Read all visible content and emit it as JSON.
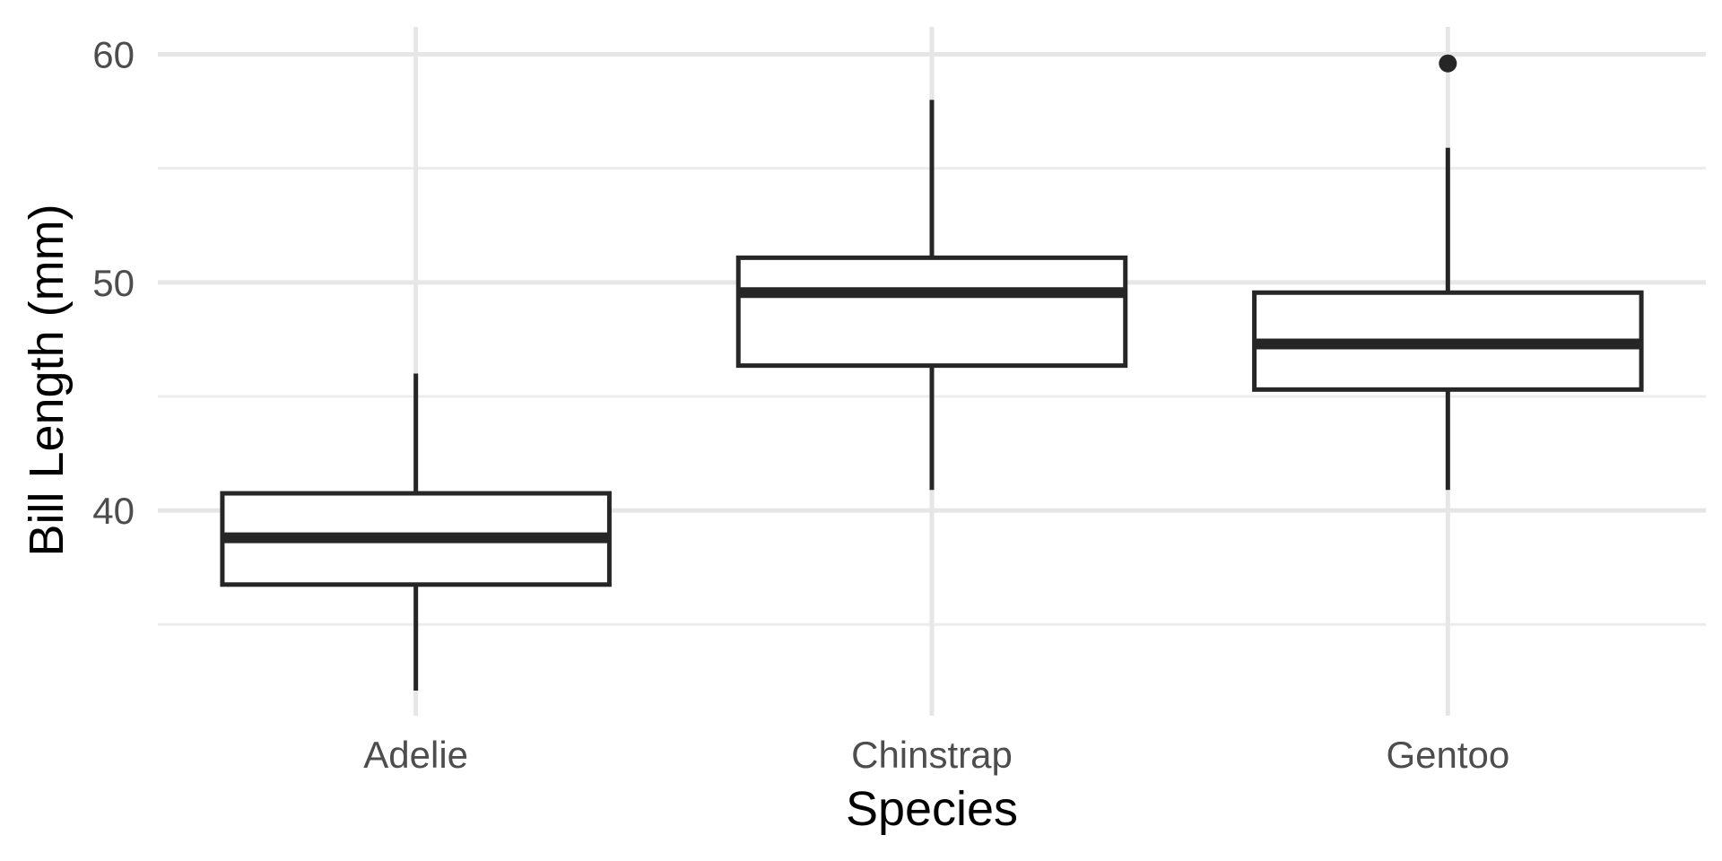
{
  "chart_data": {
    "type": "boxplot",
    "xlabel": "Species",
    "ylabel": "Bill Length (mm)",
    "ylim": [
      31,
      61.2
    ],
    "y_ticks": [
      40,
      50,
      60
    ],
    "y_minor_ticks": [
      35,
      45,
      55
    ],
    "grid": true,
    "legend": "none",
    "categories": [
      "Adelie",
      "Chinstrap",
      "Gentoo"
    ],
    "boxes": [
      {
        "category": "Adelie",
        "whisker_low": 32.1,
        "q1": 36.75,
        "median": 38.8,
        "q3": 40.75,
        "whisker_high": 46.0,
        "outliers": []
      },
      {
        "category": "Chinstrap",
        "whisker_low": 40.9,
        "q1": 46.35,
        "median": 49.55,
        "q3": 51.08,
        "whisker_high": 58.0,
        "outliers": []
      },
      {
        "category": "Gentoo",
        "whisker_low": 40.9,
        "q1": 45.3,
        "median": 47.3,
        "q3": 49.55,
        "whisker_high": 55.9,
        "outliers": [
          59.6
        ]
      }
    ]
  }
}
